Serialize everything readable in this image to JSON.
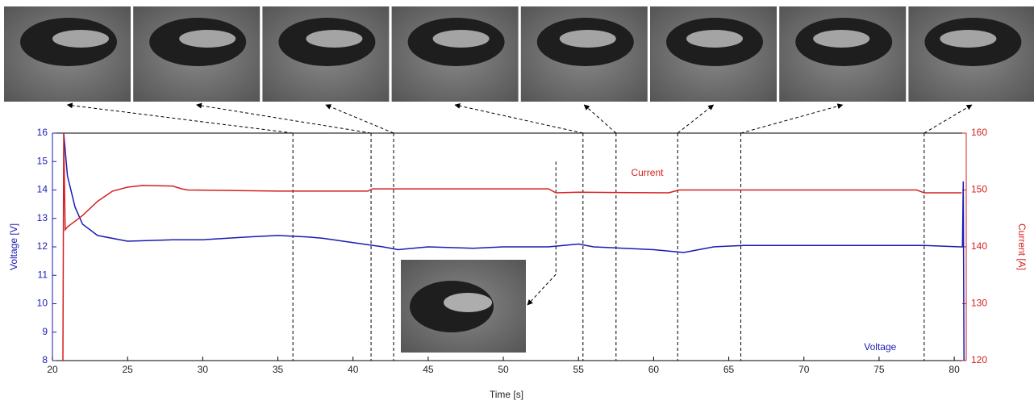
{
  "chart_data": {
    "type": "line",
    "xlabel": "Time [s]",
    "ylabel": "Voltage [V]",
    "y2label": "Current [A]",
    "xlim": [
      20,
      80.8
    ],
    "xticks": [
      20,
      25,
      30,
      35,
      40,
      45,
      50,
      55,
      60,
      65,
      70,
      75,
      80
    ],
    "ylim": [
      8,
      16
    ],
    "yticks": [
      8,
      9,
      10,
      11,
      12,
      13,
      14,
      15,
      16
    ],
    "y2lim": [
      120,
      160
    ],
    "y2ticks": [
      120,
      130,
      140,
      150,
      160
    ],
    "series": [
      {
        "name": "Voltage",
        "color": "#1a1ab4",
        "x": [
          20.75,
          21,
          21.5,
          22,
          23,
          25,
          28,
          30,
          33,
          35,
          37,
          38,
          40,
          42,
          43,
          45,
          48,
          50,
          53,
          55,
          56,
          58,
          60,
          61,
          62,
          63,
          64,
          66,
          70,
          73,
          75,
          78,
          80.4,
          80.55,
          80.6,
          80.65
        ],
        "values": [
          16,
          14.5,
          13.4,
          12.8,
          12.4,
          12.2,
          12.25,
          12.25,
          12.35,
          12.4,
          12.35,
          12.3,
          12.15,
          12.0,
          11.9,
          12.0,
          11.95,
          12.0,
          12.0,
          12.1,
          12.0,
          11.95,
          11.9,
          11.85,
          11.8,
          11.9,
          12.0,
          12.05,
          12.05,
          12.05,
          12.05,
          12.05,
          12.0,
          12.0,
          14.3,
          8
        ]
      },
      {
        "name": "Current",
        "color": "#d42020",
        "axis": "y2",
        "x": [
          20.7,
          20.75,
          20.85,
          21,
          22,
          23,
          24,
          25,
          26,
          28,
          28.6,
          29,
          35,
          41,
          41.3,
          45,
          53,
          53.5,
          55,
          61,
          61.7,
          65,
          70,
          77.5,
          78,
          80.5
        ],
        "values": [
          120,
          160,
          143,
          143.5,
          145.5,
          148,
          149.8,
          150.5,
          150.8,
          150.7,
          150.2,
          150,
          149.8,
          149.8,
          150.2,
          150.2,
          150.2,
          149.5,
          149.6,
          149.5,
          150,
          150,
          150,
          150,
          149.5,
          149.5
        ]
      }
    ],
    "frame_times": [
      36,
      41.2,
      42.7,
      55.3,
      57.5,
      61.6,
      65.8,
      78
    ],
    "inset_time": 53.5,
    "inset_top": 15
  }
}
